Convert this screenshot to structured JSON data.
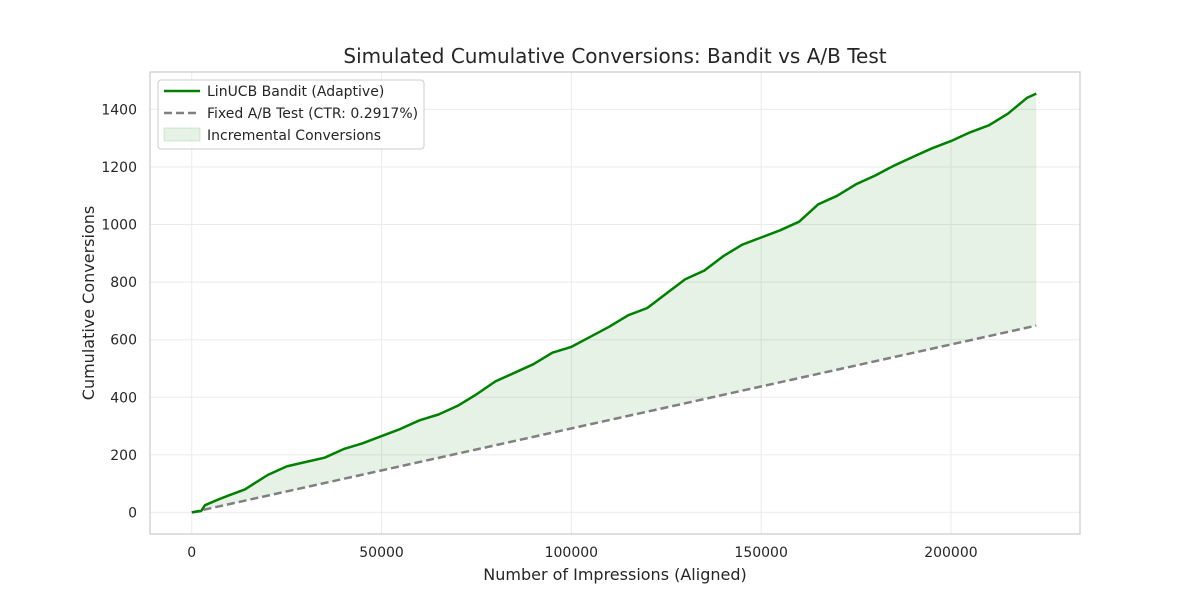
{
  "chart_data": {
    "type": "line",
    "title": "Simulated Cumulative Conversions: Bandit vs A/B Test",
    "xlabel": "Number of Impressions (Aligned)",
    "ylabel": "Cumulative Conversions",
    "xlim": [
      -11000,
      234000
    ],
    "ylim": [
      -75,
      1530
    ],
    "x_ticks": [
      0,
      50000,
      100000,
      150000,
      200000
    ],
    "x_tick_labels": [
      "0",
      "50000",
      "100000",
      "150000",
      "200000"
    ],
    "y_ticks": [
      0,
      200,
      400,
      600,
      800,
      1000,
      1200,
      1400
    ],
    "y_tick_labels": [
      "0",
      "200",
      "400",
      "600",
      "800",
      "1000",
      "1200",
      "1400"
    ],
    "grid": true,
    "legend_position": "top-left",
    "series": [
      {
        "name": "LinUCB Bandit (Adaptive)",
        "style": "solid",
        "color": "#008000",
        "x": [
          0,
          2500,
          3500,
          7000,
          10000,
          14000,
          17000,
          20000,
          25000,
          30000,
          35000,
          40000,
          45000,
          50000,
          55000,
          60000,
          65000,
          70000,
          75000,
          80000,
          85000,
          90000,
          95000,
          100000,
          105000,
          110000,
          115000,
          120000,
          125000,
          130000,
          135000,
          140000,
          145000,
          150000,
          155000,
          160000,
          165000,
          170000,
          175000,
          180000,
          185000,
          190000,
          195000,
          200000,
          205000,
          210000,
          215000,
          220000,
          222500
        ],
        "y": [
          0,
          5,
          25,
          45,
          60,
          80,
          105,
          130,
          160,
          175,
          190,
          220,
          240,
          265,
          290,
          320,
          340,
          370,
          410,
          455,
          485,
          515,
          555,
          575,
          610,
          645,
          685,
          710,
          760,
          810,
          840,
          890,
          930,
          955,
          980,
          1010,
          1070,
          1100,
          1140,
          1170,
          1205,
          1235,
          1265,
          1290,
          1320,
          1345,
          1385,
          1440,
          1455
        ]
      },
      {
        "name": "Fixed A/B Test (CTR: 0.2917%)",
        "style": "dashed",
        "color": "#808080",
        "x": [
          0,
          222500
        ],
        "y": [
          0,
          649
        ]
      }
    ],
    "fill": {
      "name": "Incremental Conversions",
      "between": [
        "LinUCB Bandit (Adaptive)",
        "Fixed A/B Test (CTR: 0.2917%)"
      ],
      "color": "#008000",
      "opacity": 0.1
    }
  }
}
